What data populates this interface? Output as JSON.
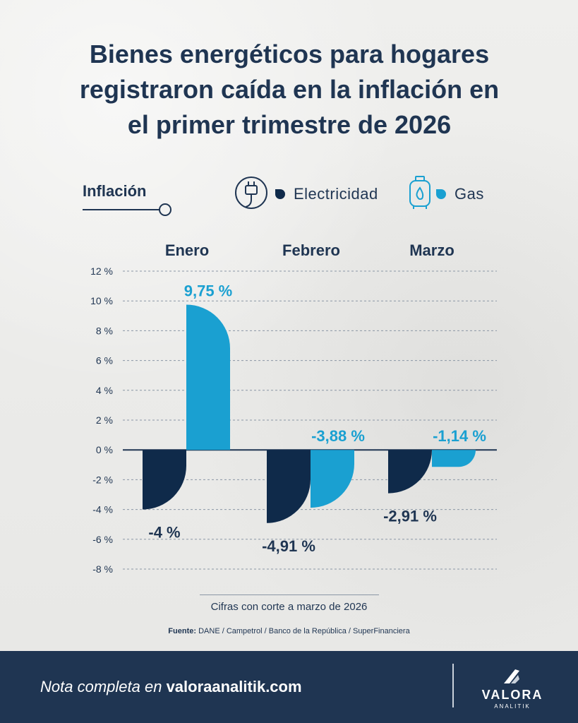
{
  "title": {
    "line1": "Bienes energéticos para hogares",
    "line2": "registraron caída en la inflación en",
    "line3": "el primer trimestre de 2026"
  },
  "legend": {
    "title": "Inflación",
    "items": [
      {
        "label": "Electricidad",
        "icon": "plug-icon",
        "color": "#0f2a4a"
      },
      {
        "label": "Gas",
        "icon": "gas-cylinder-icon",
        "color": "#1aa0d1"
      }
    ]
  },
  "chart_data": {
    "type": "bar",
    "categories": [
      "Enero",
      "Febrero",
      "Marzo"
    ],
    "series": [
      {
        "name": "Electricidad",
        "values": [
          -4,
          -4.91,
          -2.91
        ],
        "labels": [
          "-4 %",
          "-4,91 %",
          "-2,91 %"
        ],
        "color": "#0f2a4a"
      },
      {
        "name": "Gas",
        "values": [
          9.75,
          -3.88,
          -1.14
        ],
        "labels": [
          "9,75 %",
          "-3,88 %",
          "-1,14 %"
        ],
        "color": "#1aa0d1"
      }
    ],
    "yticks": [
      "12 %",
      "10 %",
      "8 %",
      "6 %",
      "4 %",
      "2 %",
      "0 %",
      "-2 %",
      "-4 %",
      "-6 %",
      "-8 %"
    ],
    "ylim": [
      -8,
      12
    ],
    "grid": true
  },
  "footnote": "Cifras con corte a marzo de 2026",
  "source": {
    "label": "Fuente:",
    "text": "DANE / Campetrol / Banco de la República / SuperFinanciera"
  },
  "footer": {
    "prefix": "Nota completa en",
    "site": "valoraanalitik.com",
    "brand": "VALORA",
    "brand_sub": "ANALITIK"
  }
}
